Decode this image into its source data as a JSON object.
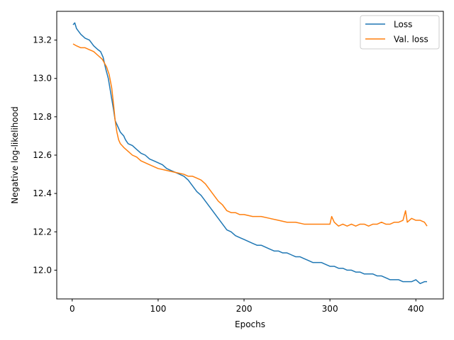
{
  "chart_data": {
    "type": "line",
    "title": "",
    "xlabel": "Epochs",
    "ylabel": "Negative log-likelihood",
    "xlim": [
      -18,
      432
    ],
    "ylim": [
      11.85,
      13.35
    ],
    "xticks": [
      0,
      100,
      200,
      300,
      400
    ],
    "yticks": [
      12.0,
      12.2,
      12.4,
      12.6,
      12.8,
      13.0,
      13.2
    ],
    "ytick_labels": [
      "12.0",
      "12.2",
      "12.4",
      "12.6",
      "12.8",
      "13.0",
      "13.2"
    ],
    "grid": false,
    "legend_position": "top-right",
    "series": [
      {
        "name": "Loss",
        "color": "#1f77b4",
        "x": [
          1,
          3,
          5,
          10,
          15,
          20,
          25,
          30,
          33,
          36,
          39,
          42,
          45,
          48,
          50,
          52,
          54,
          56,
          58,
          60,
          62,
          65,
          70,
          75,
          80,
          85,
          90,
          95,
          100,
          105,
          110,
          115,
          120,
          125,
          130,
          135,
          140,
          145,
          150,
          155,
          160,
          165,
          170,
          175,
          180,
          185,
          190,
          195,
          200,
          205,
          210,
          215,
          220,
          225,
          230,
          235,
          240,
          245,
          250,
          255,
          260,
          265,
          270,
          275,
          280,
          285,
          290,
          295,
          300,
          305,
          310,
          315,
          320,
          325,
          330,
          335,
          340,
          345,
          350,
          355,
          360,
          365,
          370,
          375,
          380,
          385,
          390,
          395,
          400,
          405,
          410,
          413
        ],
        "y": [
          13.28,
          13.29,
          13.26,
          13.23,
          13.21,
          13.2,
          13.17,
          13.15,
          13.14,
          13.11,
          13.05,
          13.0,
          12.92,
          12.84,
          12.78,
          12.76,
          12.74,
          12.72,
          12.71,
          12.7,
          12.68,
          12.66,
          12.65,
          12.63,
          12.61,
          12.6,
          12.58,
          12.57,
          12.56,
          12.55,
          12.53,
          12.52,
          12.51,
          12.5,
          12.49,
          12.47,
          12.44,
          12.41,
          12.39,
          12.36,
          12.33,
          12.3,
          12.27,
          12.24,
          12.21,
          12.2,
          12.18,
          12.17,
          12.16,
          12.15,
          12.14,
          12.13,
          12.13,
          12.12,
          12.11,
          12.1,
          12.1,
          12.09,
          12.09,
          12.08,
          12.07,
          12.07,
          12.06,
          12.05,
          12.04,
          12.04,
          12.04,
          12.03,
          12.02,
          12.02,
          12.01,
          12.01,
          12.0,
          12.0,
          11.99,
          11.99,
          11.98,
          11.98,
          11.98,
          11.97,
          11.97,
          11.96,
          11.95,
          11.95,
          11.95,
          11.94,
          11.94,
          11.94,
          11.95,
          11.93,
          11.94,
          11.94
        ]
      },
      {
        "name": "Val. loss",
        "color": "#ff7f0e",
        "x": [
          1,
          5,
          10,
          15,
          20,
          25,
          30,
          35,
          40,
          43,
          46,
          48,
          50,
          52,
          54,
          56,
          60,
          65,
          70,
          75,
          80,
          90,
          100,
          110,
          120,
          130,
          135,
          140,
          145,
          150,
          155,
          160,
          165,
          170,
          175,
          180,
          185,
          190,
          195,
          200,
          210,
          220,
          230,
          240,
          250,
          260,
          270,
          280,
          290,
          295,
          300,
          302,
          305,
          310,
          315,
          320,
          325,
          330,
          335,
          340,
          345,
          350,
          355,
          360,
          365,
          370,
          375,
          380,
          385,
          388,
          390,
          395,
          400,
          405,
          410,
          413
        ],
        "y": [
          13.18,
          13.17,
          13.16,
          13.16,
          13.15,
          13.14,
          13.12,
          13.1,
          13.06,
          13.02,
          12.95,
          12.87,
          12.78,
          12.72,
          12.68,
          12.66,
          12.64,
          12.62,
          12.6,
          12.59,
          12.57,
          12.55,
          12.53,
          12.52,
          12.51,
          12.5,
          12.49,
          12.49,
          12.48,
          12.47,
          12.45,
          12.42,
          12.39,
          12.36,
          12.34,
          12.31,
          12.3,
          12.3,
          12.29,
          12.29,
          12.28,
          12.28,
          12.27,
          12.26,
          12.25,
          12.25,
          12.24,
          12.24,
          12.24,
          12.24,
          12.24,
          12.28,
          12.25,
          12.23,
          12.24,
          12.23,
          12.24,
          12.23,
          12.24,
          12.24,
          12.23,
          12.24,
          12.24,
          12.25,
          12.24,
          12.24,
          12.25,
          12.25,
          12.26,
          12.31,
          12.25,
          12.27,
          12.26,
          12.26,
          12.25,
          12.23
        ]
      }
    ]
  }
}
